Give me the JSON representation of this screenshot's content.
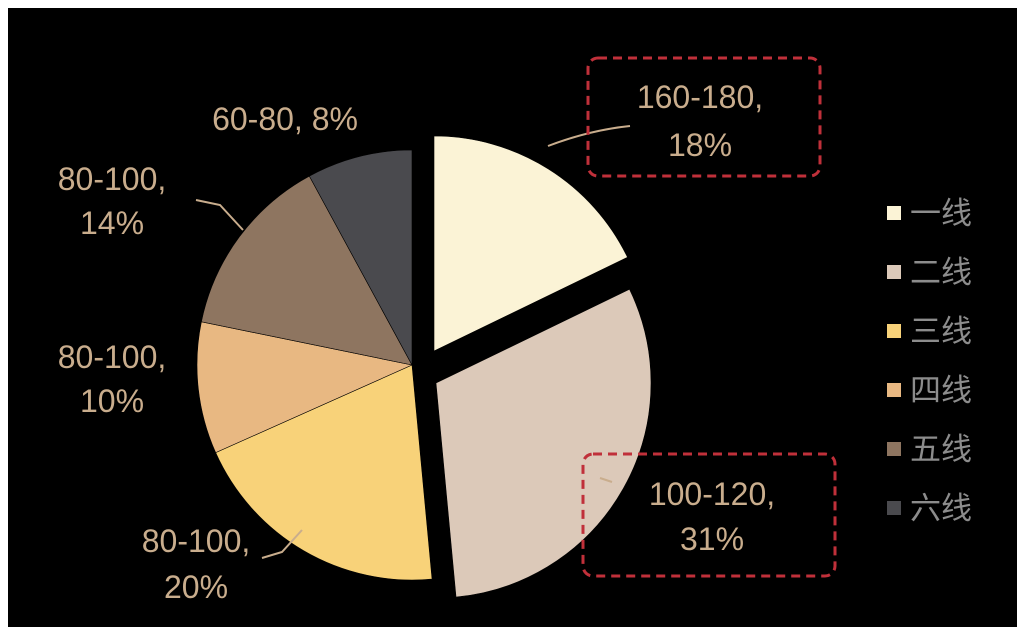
{
  "chart_data": {
    "type": "pie",
    "slices": [
      {
        "category": "一线",
        "range": "160-180",
        "percent": 18,
        "label_line1": "160-180,",
        "label_line2": "18%",
        "color": "#FBF3D6",
        "exploded": true
      },
      {
        "category": "二线",
        "range": "100-120",
        "percent": 31,
        "label_line1": "100-120,",
        "label_line2": "31%",
        "color": "#DCC9B9",
        "exploded": true
      },
      {
        "category": "三线",
        "range": "80-100",
        "percent": 20,
        "label_line1": "80-100,",
        "label_line2": "20%",
        "color": "#F8D279",
        "exploded": false
      },
      {
        "category": "四线",
        "range": "80-100",
        "percent": 10,
        "label_line1": "80-100,",
        "label_line2": "10%",
        "color": "#E8B882",
        "exploded": false
      },
      {
        "category": "五线",
        "range": "80-100",
        "percent": 14,
        "label_line1": "80-100,",
        "label_line2": "14%",
        "color": "#8E7560",
        "exploded": false
      },
      {
        "category": "六线",
        "range": "60-80",
        "percent": 8,
        "label_line1": "60-80, 8%",
        "label_line2": "",
        "color": "#4A4A4E",
        "exploded": false
      }
    ],
    "legend": {
      "position": "right",
      "items": [
        "一线",
        "二线",
        "三线",
        "四线",
        "五线",
        "六线"
      ]
    },
    "highlighted": [
      "一线",
      "二线"
    ],
    "label_color": "#C9AD8D",
    "highlight_color": "#C0303A",
    "background": "#000000"
  }
}
